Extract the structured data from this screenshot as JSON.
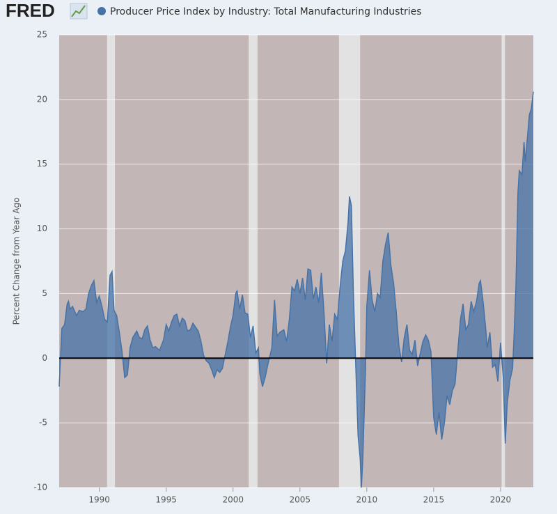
{
  "chart_data": {
    "type": "area",
    "logo": "FRED",
    "ylabel": "Percent Change from Year Ago",
    "x": [
      1987.0,
      1987.2,
      1987.4,
      1987.6,
      1987.7,
      1987.8,
      1988.0,
      1988.3,
      1988.5,
      1988.8,
      1989.0,
      1989.2,
      1989.4,
      1989.6,
      1989.8,
      1990.0,
      1990.2,
      1990.4,
      1990.6,
      1990.8,
      1990.95,
      1991.1,
      1991.3,
      1991.5,
      1991.7,
      1991.9,
      1992.1,
      1992.3,
      1992.5,
      1992.8,
      1993.0,
      1993.2,
      1993.4,
      1993.6,
      1993.8,
      1994.0,
      1994.2,
      1994.5,
      1994.8,
      1995.0,
      1995.2,
      1995.4,
      1995.6,
      1995.8,
      1996.0,
      1996.2,
      1996.4,
      1996.6,
      1996.8,
      1997.0,
      1997.2,
      1997.4,
      1997.6,
      1997.8,
      1998.0,
      1998.2,
      1998.4,
      1998.6,
      1998.8,
      1999.0,
      1999.2,
      1999.4,
      1999.6,
      1999.8,
      2000.0,
      2000.2,
      2000.3,
      2000.5,
      2000.7,
      2000.9,
      2001.1,
      2001.3,
      2001.5,
      2001.7,
      2001.9,
      2002.0,
      2002.2,
      2002.4,
      2002.6,
      2002.9,
      2003.1,
      2003.3,
      2003.5,
      2003.8,
      2004.0,
      2004.2,
      2004.4,
      2004.6,
      2004.8,
      2005.0,
      2005.2,
      2005.4,
      2005.6,
      2005.8,
      2006.0,
      2006.2,
      2006.4,
      2006.6,
      2006.8,
      2007.0,
      2007.2,
      2007.4,
      2007.6,
      2007.8,
      2008.0,
      2008.2,
      2008.4,
      2008.6,
      2008.7,
      2008.85,
      2009.0,
      2009.2,
      2009.35,
      2009.5,
      2009.6,
      2009.7,
      2009.9,
      2010.0,
      2010.2,
      2010.4,
      2010.6,
      2010.8,
      2011.0,
      2011.2,
      2011.4,
      2011.6,
      2011.8,
      2012.0,
      2012.2,
      2012.4,
      2012.6,
      2012.8,
      2013.0,
      2013.2,
      2013.4,
      2013.6,
      2013.8,
      2014.0,
      2014.2,
      2014.4,
      2014.6,
      2014.8,
      2015.0,
      2015.2,
      2015.4,
      2015.6,
      2015.8,
      2016.0,
      2016.2,
      2016.4,
      2016.6,
      2016.8,
      2017.0,
      2017.2,
      2017.4,
      2017.6,
      2017.8,
      2018.0,
      2018.2,
      2018.4,
      2018.5,
      2018.7,
      2018.9,
      2019.0,
      2019.2,
      2019.4,
      2019.6,
      2019.8,
      2020.0,
      2020.2,
      2020.35,
      2020.5,
      2020.7,
      2020.9,
      2021.0,
      2021.15,
      2021.3,
      2021.4,
      2021.6,
      2021.75,
      2021.85,
      2022.0,
      2022.15,
      2022.3,
      2022.45
    ],
    "series": [
      {
        "name": "Producer Price Index by Industry: Total Manufacturing Industries",
        "color": "#4572a7",
        "values": [
          -2.2,
          2.3,
          2.6,
          4.2,
          4.4,
          3.8,
          4.0,
          3.3,
          3.7,
          3.6,
          3.8,
          5.0,
          5.6,
          6.0,
          4.3,
          4.8,
          4.0,
          3.0,
          2.8,
          6.4,
          6.7,
          3.7,
          3.3,
          2.0,
          0.5,
          -1.5,
          -1.3,
          0.8,
          1.6,
          2.1,
          1.6,
          1.5,
          2.2,
          2.5,
          1.4,
          0.8,
          0.9,
          0.6,
          1.4,
          2.6,
          2.1,
          2.8,
          3.3,
          3.4,
          2.5,
          3.1,
          2.9,
          2.1,
          2.2,
          2.7,
          2.4,
          2.1,
          1.3,
          0.2,
          -0.2,
          -0.4,
          -0.9,
          -1.5,
          -0.9,
          -1.1,
          -0.8,
          0.2,
          1.2,
          2.4,
          3.3,
          5.0,
          5.2,
          3.8,
          4.9,
          3.5,
          3.4,
          1.6,
          2.5,
          0.4,
          0.8,
          -1.2,
          -2.2,
          -1.5,
          -0.5,
          0.8,
          4.5,
          1.7,
          2.0,
          2.2,
          1.3,
          2.9,
          5.5,
          5.2,
          6.1,
          5.0,
          6.2,
          4.5,
          6.9,
          6.8,
          4.6,
          5.5,
          4.3,
          6.6,
          3.5,
          -0.4,
          2.6,
          1.3,
          3.4,
          3.0,
          5.5,
          7.5,
          8.3,
          10.5,
          12.5,
          11.8,
          5.0,
          -1.5,
          -6.0,
          -7.7,
          -10.0,
          -7.8,
          -1.0,
          4.0,
          6.8,
          4.5,
          3.6,
          5.0,
          4.7,
          7.5,
          8.8,
          9.7,
          7.2,
          5.8,
          3.6,
          1.0,
          -0.3,
          1.6,
          2.6,
          0.6,
          0.3,
          1.4,
          -0.6,
          0.4,
          1.3,
          1.8,
          1.4,
          0.5,
          -4.6,
          -5.9,
          -4.2,
          -6.3,
          -5.0,
          -2.9,
          -3.6,
          -2.5,
          -2.0,
          0.6,
          3.0,
          4.2,
          2.2,
          2.6,
          4.4,
          3.6,
          4.4,
          5.8,
          6.0,
          4.3,
          2.2,
          0.8,
          2.0,
          -0.7,
          -0.5,
          -1.8,
          1.2,
          -1.5,
          -6.6,
          -3.5,
          -1.7,
          -0.8,
          1.5,
          5.6,
          12.8,
          14.5,
          14.2,
          16.7,
          15.2,
          17.0,
          18.8,
          19.3,
          20.6
        ]
      }
    ],
    "recessions": [
      [
        1990.58,
        1991.17
      ],
      [
        2001.17,
        2001.83
      ],
      [
        2007.92,
        2009.5
      ],
      [
        2020.08,
        2020.33
      ]
    ],
    "xlim": [
      1987.0,
      2022.45
    ],
    "xticks": [
      1990,
      1995,
      2000,
      2005,
      2010,
      2015,
      2020
    ],
    "ylim": [
      -10,
      25
    ],
    "yticks": [
      -10,
      -5,
      0,
      5,
      10,
      15,
      20,
      25
    ],
    "grid": true
  }
}
